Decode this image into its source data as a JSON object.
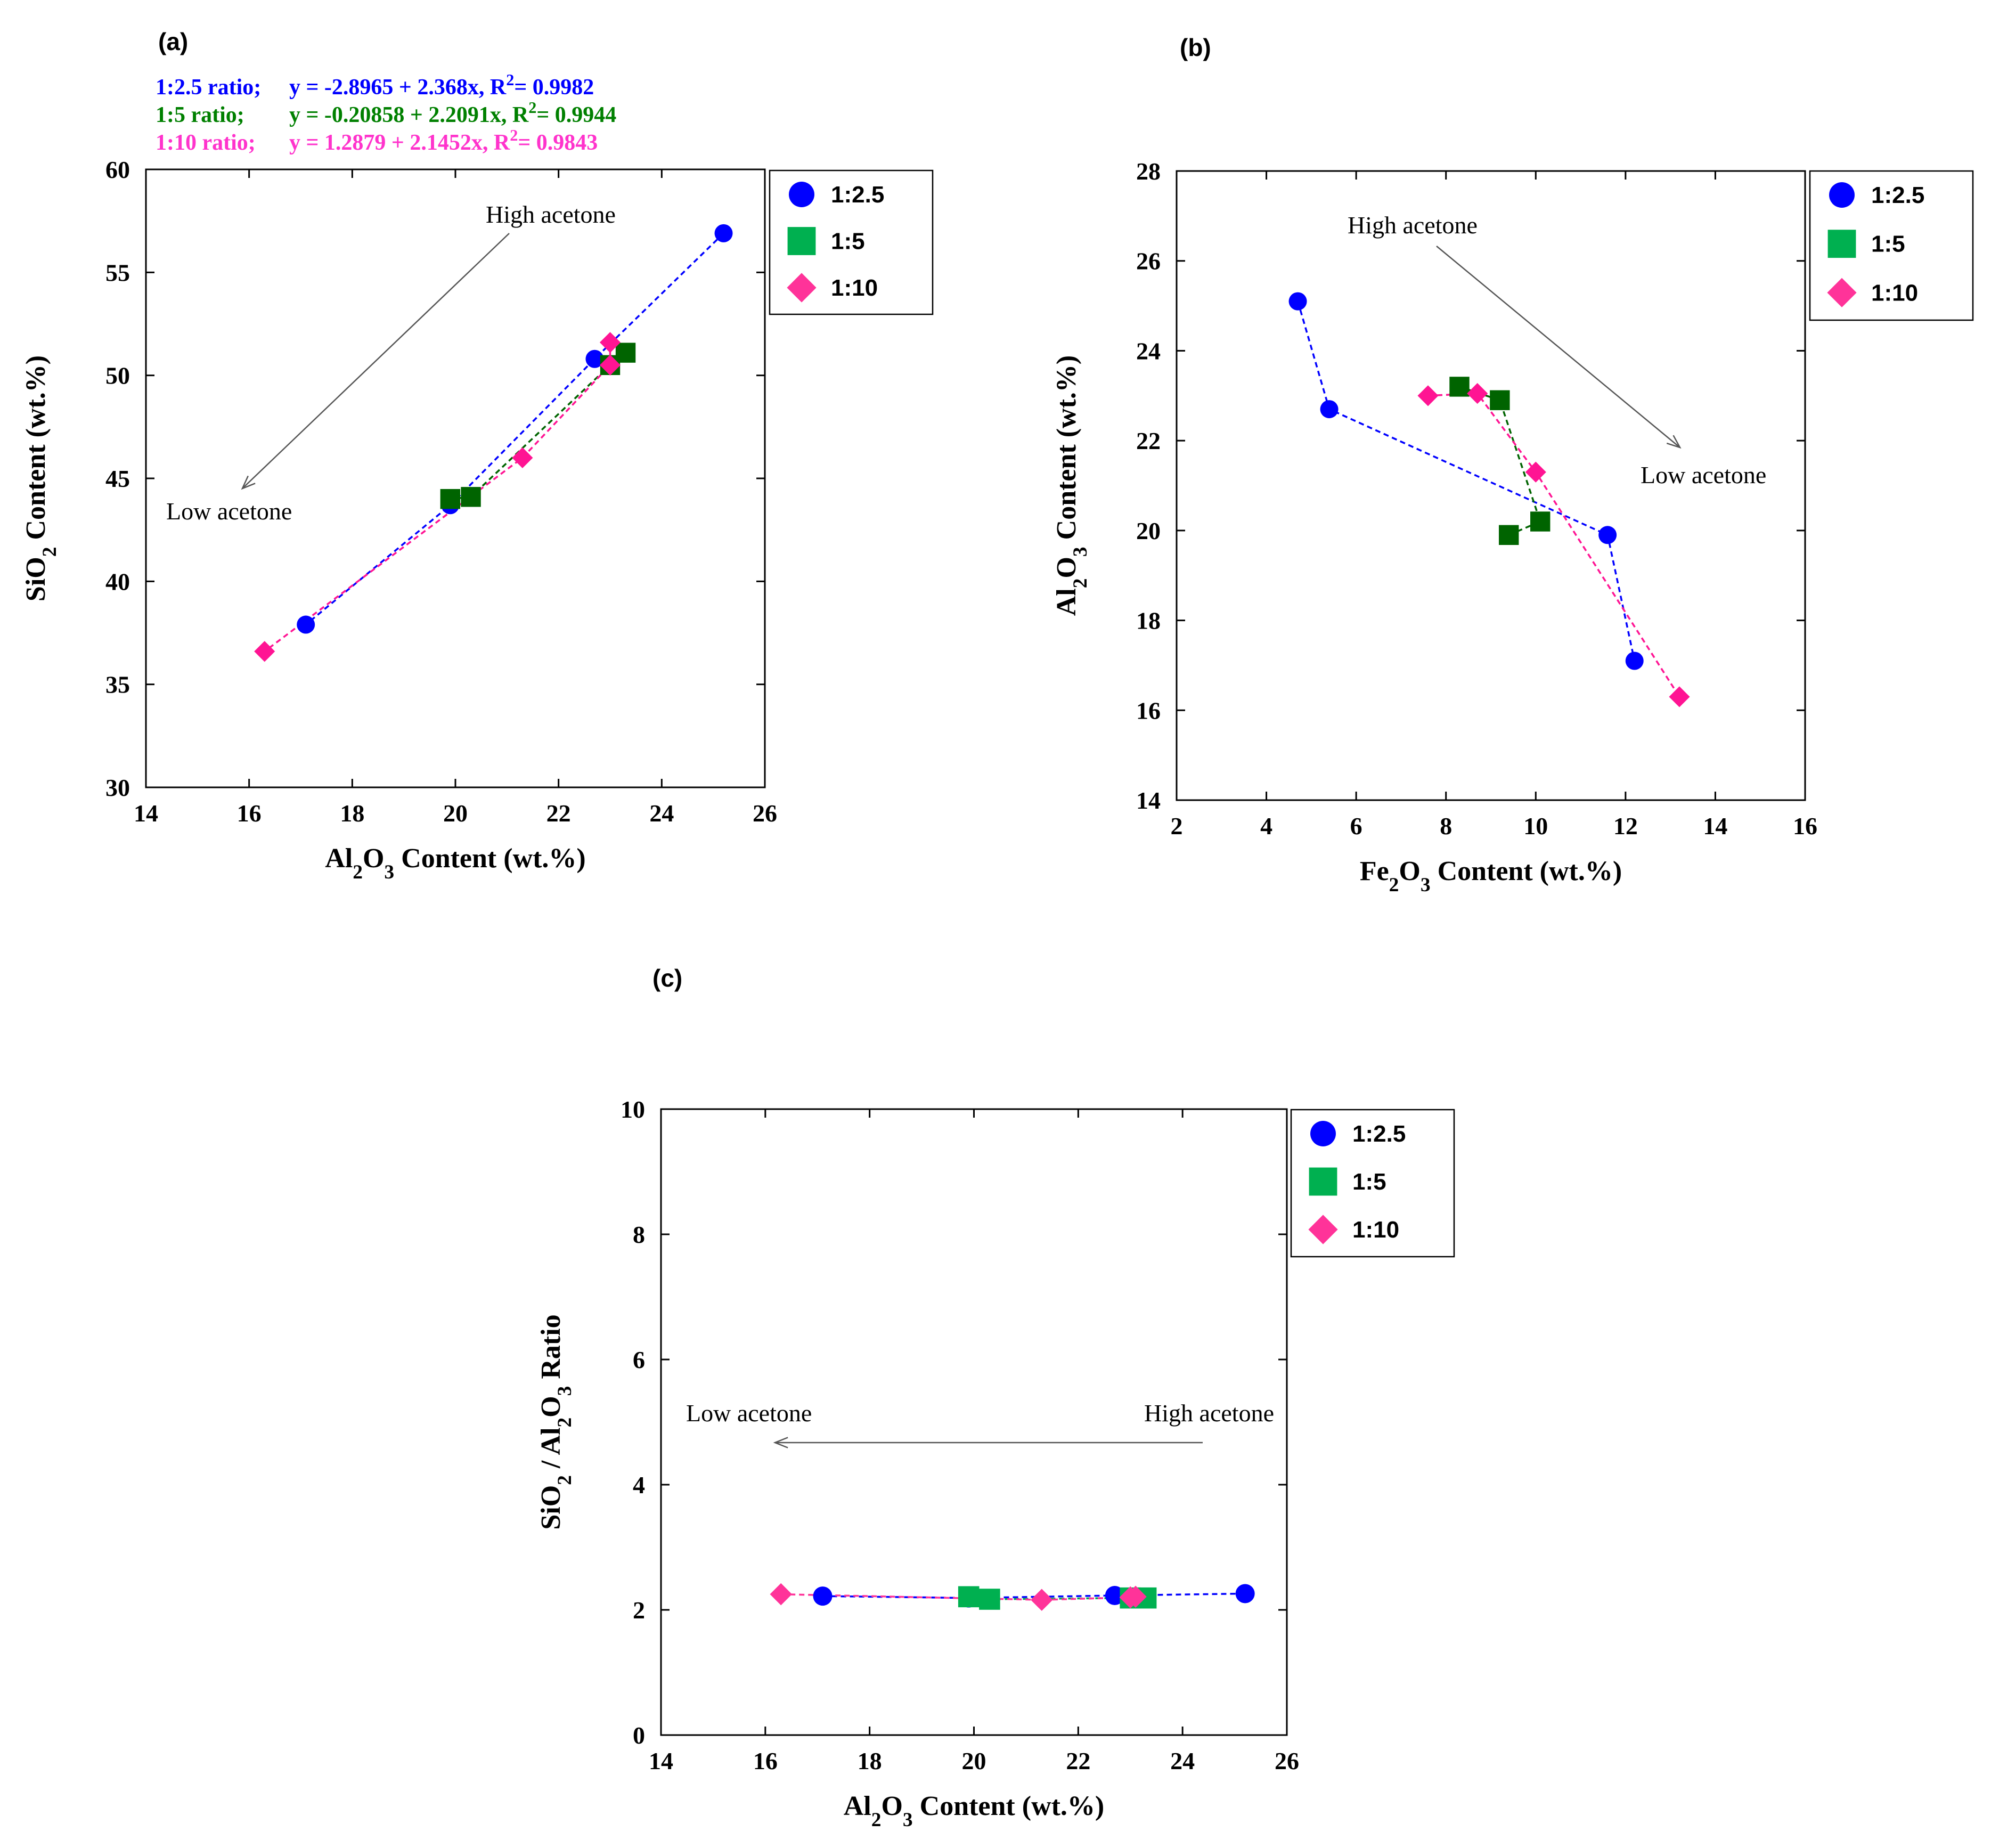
{
  "chart_data": [
    {
      "panel_label": "(a)",
      "type": "scatter",
      "xlabel_parts": [
        "Al",
        "2",
        "O",
        "3",
        " Content (wt.%)"
      ],
      "ylabel_parts": [
        "SiO",
        "2",
        " Content (wt.%)"
      ],
      "xlim": [
        14,
        26
      ],
      "ylim": [
        30,
        60
      ],
      "xticks": [
        "14",
        "16",
        "18",
        "20",
        "22",
        "24",
        "26"
      ],
      "yticks": [
        "30",
        "35",
        "40",
        "45",
        "50",
        "55",
        "60"
      ],
      "equations": [
        {
          "series": "1:2.5",
          "label": "1:2.5 ratio;",
          "eq_main": "y = -2.8965 + 2.368x, R",
          "eq_sup": "2",
          "eq_tail": "= 0.9982",
          "color": "#0000ff"
        },
        {
          "series": "1:5",
          "label": "1:5 ratio;",
          "eq_main": "y = -0.20858 + 2.2091x, R",
          "eq_sup": "2",
          "eq_tail": "= 0.9944",
          "color": "#008000"
        },
        {
          "series": "1:10",
          "label": "1:10 ratio;",
          "eq_main": "y = 1.2879 + 2.1452x, R",
          "eq_sup": "2",
          "eq_tail": "= 0.9843",
          "color": "#ff33cc"
        }
      ],
      "annotations": [
        {
          "text": "High acetone"
        },
        {
          "text": "Low acetone"
        }
      ],
      "series": [
        {
          "name": "1:2.5",
          "marker": "circle",
          "color": "#0000ff",
          "points": [
            [
              25.2,
              56.9
            ],
            [
              22.7,
              50.8
            ],
            [
              19.9,
              43.7
            ],
            [
              17.1,
              37.9
            ]
          ]
        },
        {
          "name": "1:5",
          "marker": "square",
          "color": "#006400",
          "points": [
            [
              23.3,
              51.1
            ],
            [
              23.0,
              50.5
            ],
            [
              20.3,
              44.1
            ],
            [
              19.9,
              44.0
            ]
          ]
        },
        {
          "name": "1:10",
          "marker": "diamond",
          "color": "#ff1493",
          "points": [
            [
              23.0,
              51.6
            ],
            [
              23.0,
              50.5
            ],
            [
              21.3,
              46.0
            ],
            [
              16.3,
              36.6
            ]
          ]
        }
      ]
    },
    {
      "panel_label": "(b)",
      "type": "scatter",
      "xlabel_parts": [
        "Fe",
        "2",
        "O",
        "3",
        " Content (wt.%)"
      ],
      "ylabel_parts": [
        "Al",
        "2",
        "O",
        "3",
        " Content (wt.%)"
      ],
      "xlim": [
        2,
        16
      ],
      "ylim": [
        14,
        28
      ],
      "xticks": [
        "2",
        "4",
        "6",
        "8",
        "10",
        "12",
        "14",
        "16"
      ],
      "yticks": [
        "14",
        "16",
        "18",
        "20",
        "22",
        "24",
        "26",
        "28"
      ],
      "annotations": [
        {
          "text": "High acetone"
        },
        {
          "text": "Low acetone"
        }
      ],
      "series": [
        {
          "name": "1:2.5",
          "marker": "circle",
          "color": "#0000ff",
          "points": [
            [
              4.7,
              25.1
            ],
            [
              5.4,
              22.7
            ],
            [
              11.6,
              19.9
            ],
            [
              12.2,
              17.1
            ]
          ]
        },
        {
          "name": "1:5",
          "marker": "square",
          "color": "#006400",
          "points": [
            [
              8.3,
              23.2
            ],
            [
              9.2,
              22.9
            ],
            [
              10.1,
              20.2
            ],
            [
              9.4,
              19.9
            ]
          ]
        },
        {
          "name": "1:10",
          "marker": "diamond",
          "color": "#ff1493",
          "points": [
            [
              7.6,
              23.0
            ],
            [
              8.7,
              23.05
            ],
            [
              10.0,
              21.3
            ],
            [
              13.2,
              16.3
            ]
          ]
        }
      ]
    },
    {
      "panel_label": "(c)",
      "type": "scatter",
      "xlabel_parts": [
        "Al",
        "2",
        "O",
        "3",
        " Content (wt.%)"
      ],
      "ylabel_parts": [
        "SiO",
        "2",
        " / Al",
        "2",
        "O",
        "3",
        " Ratio"
      ],
      "xlim": [
        14,
        26
      ],
      "ylim": [
        0,
        10
      ],
      "xticks": [
        "14",
        "16",
        "18",
        "20",
        "22",
        "24",
        "26"
      ],
      "yticks": [
        "0",
        "2",
        "4",
        "6",
        "8",
        "10"
      ],
      "annotations": [
        {
          "text": "Low acetone"
        },
        {
          "text": "High acetone"
        }
      ],
      "series": [
        {
          "name": "1:2.5",
          "marker": "circle",
          "color": "#0000ff",
          "points": [
            [
              17.1,
              2.22
            ],
            [
              19.9,
              2.19
            ],
            [
              22.7,
              2.23
            ],
            [
              25.2,
              2.26
            ]
          ]
        },
        {
          "name": "1:5",
          "marker": "square",
          "color": "#00b050",
          "points": [
            [
              19.9,
              2.21
            ],
            [
              20.3,
              2.17
            ],
            [
              23.0,
              2.19
            ],
            [
              23.3,
              2.19
            ]
          ]
        },
        {
          "name": "1:10",
          "marker": "diamond",
          "color": "#ff3399",
          "points": [
            [
              16.3,
              2.25
            ],
            [
              21.3,
              2.16
            ],
            [
              23.0,
              2.2
            ],
            [
              23.1,
              2.21
            ]
          ]
        }
      ]
    }
  ],
  "legend_items": [
    {
      "label": "1:2.5",
      "marker": "circle",
      "color": "#0000ff"
    },
    {
      "label": "1:5",
      "marker": "square",
      "color": "#00b050"
    },
    {
      "label": "1:10",
      "marker": "diamond",
      "color": "#ff3399"
    }
  ]
}
